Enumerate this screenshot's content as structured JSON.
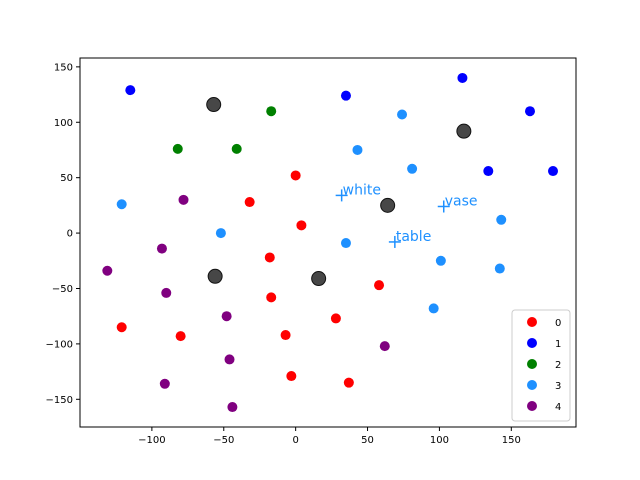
{
  "chart_data": {
    "type": "scatter",
    "title": "",
    "xlabel": "",
    "ylabel": "",
    "xlim": [
      -150,
      195
    ],
    "ylim": [
      -175,
      158
    ],
    "xticks": [
      -100,
      -50,
      0,
      50,
      100,
      150
    ],
    "yticks": [
      -150,
      -100,
      -50,
      0,
      50,
      100,
      150
    ],
    "grid": false,
    "legend": {
      "placement": "bottom-right"
    },
    "series": [
      {
        "name": "0",
        "color": "#ff0000",
        "points": [
          [
            0,
            52
          ],
          [
            -32,
            28
          ],
          [
            4,
            7
          ],
          [
            -18,
            -22
          ],
          [
            -17,
            -58
          ],
          [
            -7,
            -92
          ],
          [
            -3,
            -129
          ],
          [
            28,
            -77
          ],
          [
            37,
            -135
          ],
          [
            58,
            -47
          ],
          [
            -80,
            -93
          ],
          [
            -121,
            -85
          ]
        ]
      },
      {
        "name": "1",
        "color": "#0000ff",
        "points": [
          [
            -115,
            129
          ],
          [
            35,
            124
          ],
          [
            116,
            140
          ],
          [
            163,
            110
          ],
          [
            134,
            56
          ],
          [
            179,
            56
          ]
        ]
      },
      {
        "name": "2",
        "color": "#008000",
        "points": [
          [
            -17,
            110
          ],
          [
            -82,
            76
          ],
          [
            -41,
            76
          ]
        ]
      },
      {
        "name": "3",
        "color": "#1e90ff",
        "points": [
          [
            -121,
            26
          ],
          [
            -52,
            0
          ],
          [
            43,
            75
          ],
          [
            74,
            107
          ],
          [
            81,
            58
          ],
          [
            35,
            -9
          ],
          [
            101,
            -25
          ],
          [
            143,
            12
          ],
          [
            142,
            -32
          ],
          [
            96,
            -68
          ]
        ]
      },
      {
        "name": "4",
        "color": "#800080",
        "points": [
          [
            -78,
            30
          ],
          [
            -93,
            -14
          ],
          [
            -131,
            -34
          ],
          [
            -90,
            -54
          ],
          [
            -48,
            -75
          ],
          [
            -46,
            -114
          ],
          [
            -91,
            -136
          ],
          [
            -44,
            -157
          ],
          [
            62,
            -102
          ]
        ]
      }
    ],
    "extra_points": {
      "color": "#333333",
      "points": [
        [
          -57,
          116
        ],
        [
          117,
          92
        ],
        [
          64,
          25
        ],
        [
          -56,
          -39
        ],
        [
          16,
          -41
        ]
      ]
    },
    "annotations": [
      {
        "text": "white",
        "x": 32,
        "y": 34,
        "color": "#1e90ff"
      },
      {
        "text": "vase",
        "x": 103,
        "y": 24,
        "color": "#1e90ff"
      },
      {
        "text": "table",
        "x": 69,
        "y": -8,
        "color": "#1e90ff"
      }
    ]
  }
}
